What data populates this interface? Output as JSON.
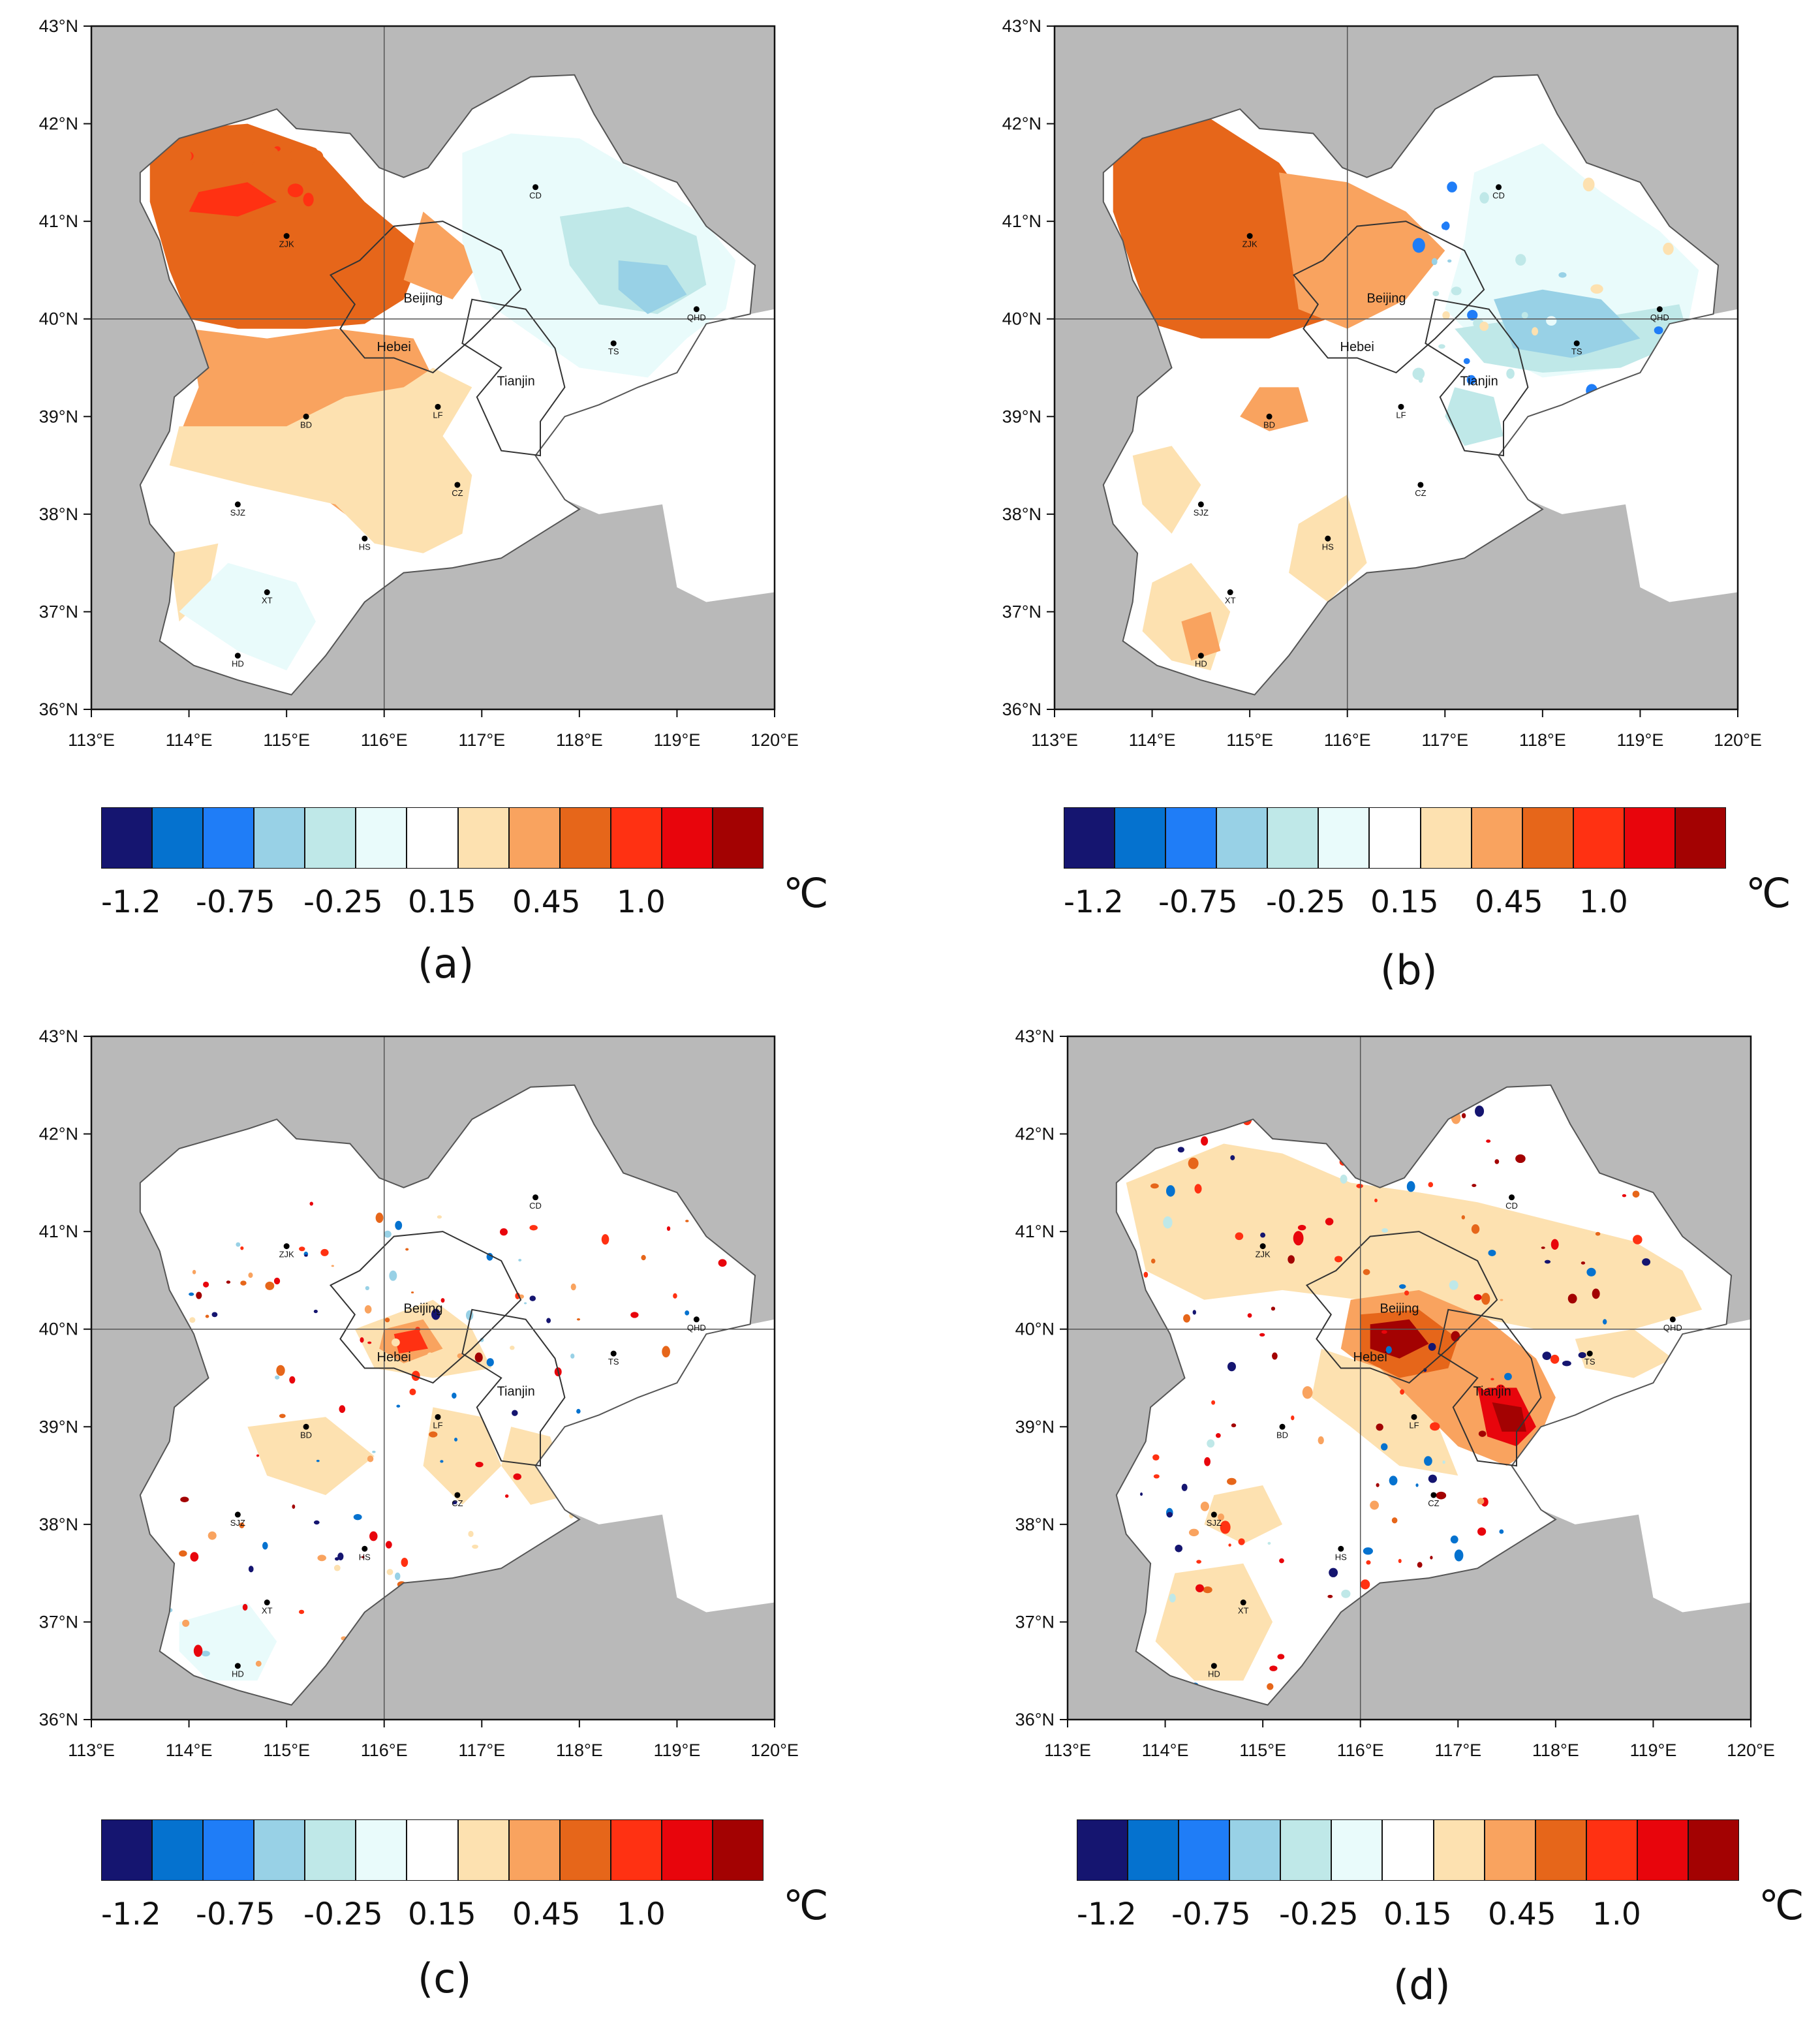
{
  "figure": {
    "units": "℃",
    "region_labels": [
      "Beijing",
      "Hebei",
      "Tianjin"
    ],
    "lat_labels": [
      "43°N",
      "42°N",
      "41°N",
      "40°N",
      "39°N",
      "38°N",
      "37°N",
      "36°N"
    ],
    "lon_labels": [
      "113°E",
      "114°E",
      "115°E",
      "116°E",
      "117°E",
      "118°E",
      "119°E",
      "120°E"
    ],
    "colorbar_labels": [
      "-1.2",
      "-0.75",
      "-0.25",
      "0.15",
      "0.45",
      "1.0"
    ],
    "colorbar_colors": [
      "#151570",
      "#0572cf",
      "#1f7df7",
      "#98d1e6",
      "#bfe8e8",
      "#e9fbfb",
      "#ffffff",
      "#fde1b0",
      "#f9a35f",
      "#e6661a",
      "#ff3112",
      "#e8050c",
      "#a30202"
    ],
    "land_bg": "#b9b9b9"
  },
  "cities": [
    {
      "code": "ZJK",
      "lon": 115.0,
      "lat": 40.85
    },
    {
      "code": "CD",
      "lon": 117.55,
      "lat": 41.35
    },
    {
      "code": "QHD",
      "lon": 119.2,
      "lat": 40.1
    },
    {
      "code": "TS",
      "lon": 118.35,
      "lat": 39.75
    },
    {
      "code": "LF",
      "lon": 116.55,
      "lat": 39.1
    },
    {
      "code": "BD",
      "lon": 115.2,
      "lat": 39.0
    },
    {
      "code": "CZ",
      "lon": 116.75,
      "lat": 38.3
    },
    {
      "code": "SJZ",
      "lon": 114.5,
      "lat": 38.1
    },
    {
      "code": "HS",
      "lon": 115.8,
      "lat": 37.75
    },
    {
      "code": "XT",
      "lon": 114.8,
      "lat": 37.2
    },
    {
      "code": "HD",
      "lon": 114.5,
      "lat": 36.55
    }
  ],
  "chart_data": {
    "type": "map",
    "title": "",
    "units": "℃",
    "xlabel": "",
    "ylabel": "",
    "xlim": [
      113,
      120
    ],
    "ylim": [
      36,
      43
    ],
    "x_ticks": [
      113,
      114,
      115,
      116,
      117,
      118,
      119,
      120
    ],
    "y_ticks": [
      36,
      37,
      38,
      39,
      40,
      41,
      42,
      43
    ],
    "colorbar_levels": [
      -1.2,
      -0.75,
      -0.25,
      0.15,
      0.45,
      1.0
    ],
    "panels": [
      {
        "label": "(a)",
        "pattern": "warm northwest (ZJK), cool northeast (CD, TS, QHD), mild warm center (BD), near zero south"
      },
      {
        "label": "(b)",
        "pattern": "warm northwest (ZJK), cool east (TS, QHD, Tianjin), scattered warm south"
      },
      {
        "label": "(c)",
        "pattern": "mostly near zero; warm urban hotspots at Beijing, SJZ, Tianjin coast; slight cool south (HD)"
      },
      {
        "label": "(d)",
        "pattern": "widespread slight warming; strong warm Beijing–Tianjin urban belt; cool coastal spots"
      }
    ]
  }
}
